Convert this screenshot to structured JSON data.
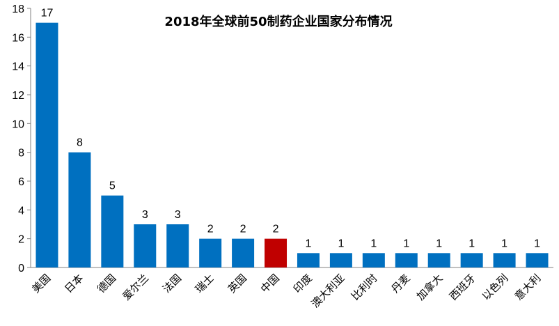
{
  "chart_data": {
    "type": "bar",
    "title": "2018年全球前50制药企业国家分布情况",
    "categories": [
      "美国",
      "日本",
      "德国",
      "爱尔兰",
      "法国",
      "瑞士",
      "英国",
      "中国",
      "印度",
      "澳大利亚",
      "比利时",
      "丹麦",
      "加拿大",
      "西班牙",
      "以色列",
      "意大利"
    ],
    "values": [
      17,
      8,
      5,
      3,
      3,
      2,
      2,
      2,
      1,
      1,
      1,
      1,
      1,
      1,
      1,
      1
    ],
    "ylim": [
      0,
      18
    ],
    "yticks": [
      0,
      2,
      4,
      6,
      8,
      10,
      12,
      14,
      16,
      18
    ],
    "xlabel": "",
    "ylabel": "",
    "grid": false,
    "legend": "none",
    "colors": {
      "bar": "#0070C0",
      "highlight": "#C00000",
      "axis": "#808080"
    },
    "highlight_category": "中国"
  }
}
